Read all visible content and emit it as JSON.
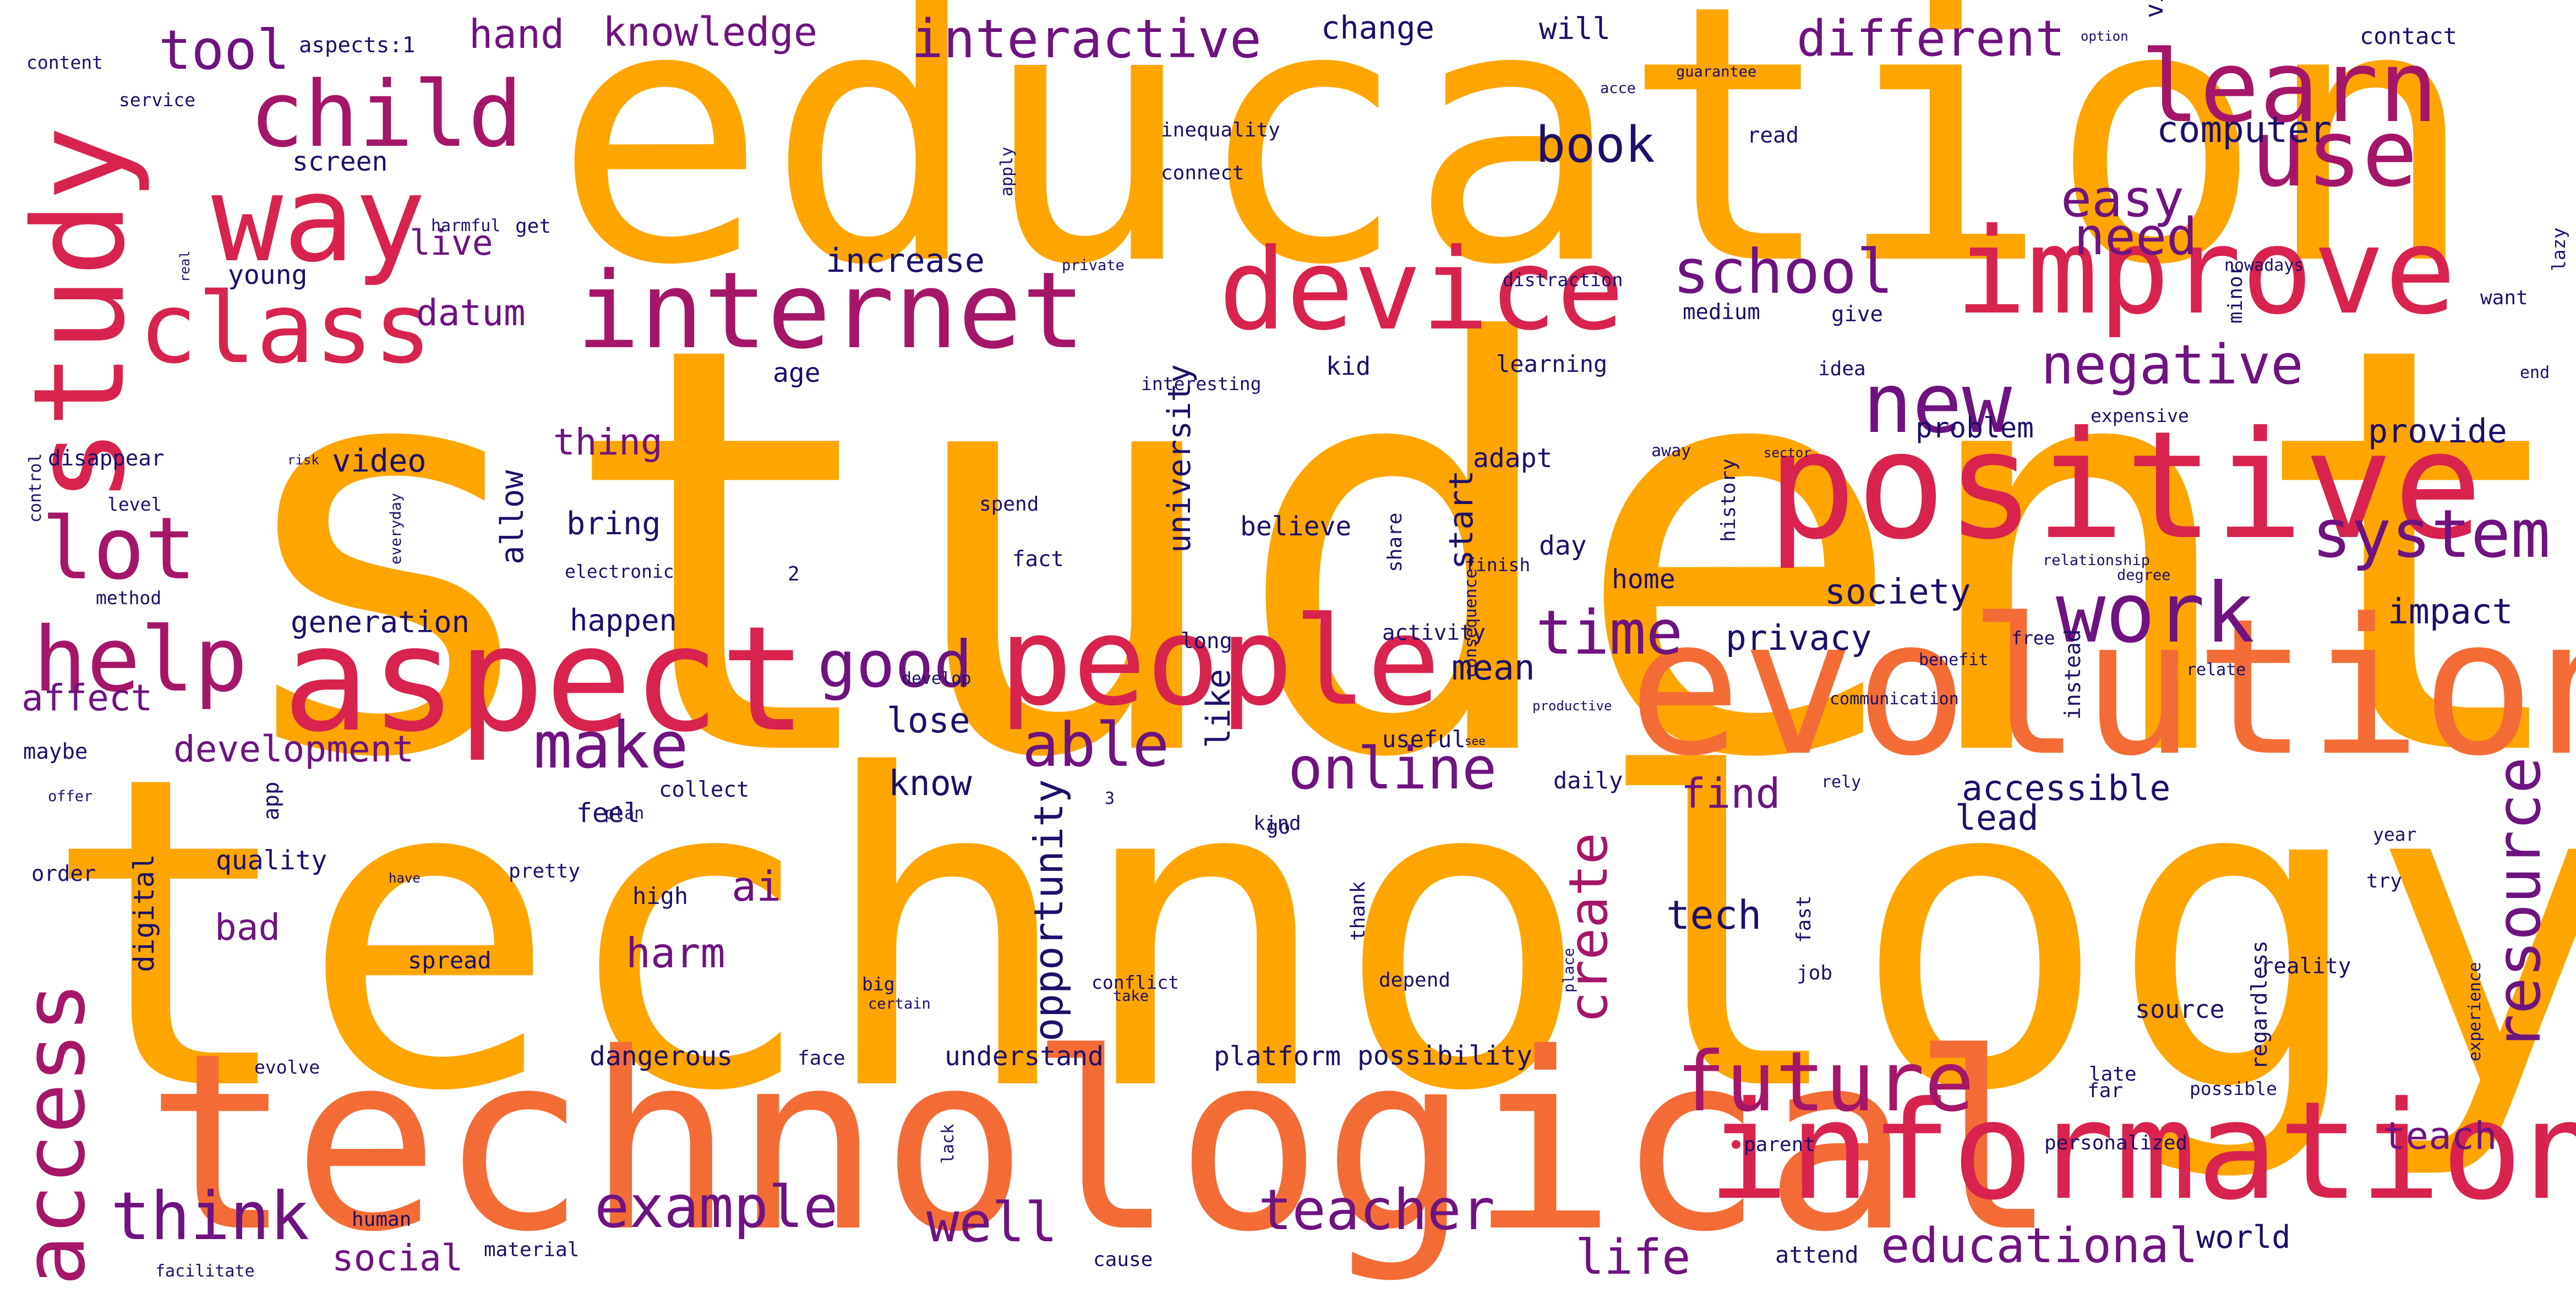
{
  "palette": {
    "orange": "#ffa500",
    "coral": "#f46c35",
    "crimson": "#d8234e",
    "magenta": "#a51669",
    "purple": "#6e1380",
    "navy": "#1d0f6a",
    "background": "#ffffff"
  },
  "words": [
    "student",
    "technology",
    "education",
    "technological",
    "evolution",
    "positive",
    "information",
    "aspect",
    "study",
    "people",
    "improve",
    "device",
    "internet",
    "way",
    "class",
    "child",
    "learn",
    "use",
    "access",
    "help",
    "lot",
    "future",
    "work",
    "new",
    "system",
    "school",
    "resource",
    "time",
    "good",
    "able",
    "online",
    "create",
    "make",
    "tool",
    "think",
    "example",
    "teacher",
    "well",
    "educational",
    "life",
    "different",
    "interactive",
    "negative",
    "need",
    "easy",
    "knowledge",
    "hand",
    "book",
    "find",
    "ai",
    "harm",
    "tech",
    "teach",
    "opportunity",
    "bad",
    "social",
    "development",
    "affect",
    "datum",
    "live",
    "thing",
    "computer",
    "society",
    "privacy",
    "impact",
    "mean",
    "lose",
    "know",
    "accessible",
    "lead",
    "university",
    "start",
    "like",
    "bring",
    "allow",
    "video",
    "provide",
    "problem",
    "increase",
    "change",
    "will",
    "generation",
    "happen",
    "digital",
    "world",
    "understand",
    "home",
    "believe",
    "day",
    "adapt",
    "feel",
    "quality",
    "possibility",
    "dangerous",
    "platform",
    "screen",
    "young",
    "age",
    "kid",
    "learning",
    "idea",
    "give",
    "medium",
    "want",
    "end",
    "contact",
    "read",
    "connect",
    "inequality",
    "aspects:1",
    "content",
    "service",
    "get",
    "harmful",
    "apply",
    "guarantee",
    "option",
    "virtual",
    "acce",
    "nowadays",
    "distraction",
    "private",
    "lazy",
    "minor",
    "expensive",
    "sector",
    "away",
    "history",
    "relationship",
    "degree",
    "interesting",
    "disappear",
    "level",
    "control",
    "risk",
    "real",
    "everyday",
    "spend",
    "fact",
    "electronic",
    "2",
    "method",
    "share",
    "finish",
    "long",
    "activity",
    "free",
    "relate",
    "communication",
    "benefit",
    "consequence",
    "develop",
    "productive",
    "useful",
    "instead",
    "maybe",
    "collect",
    "plan",
    "see",
    "daily",
    "rely",
    "year",
    "offer",
    "3",
    "kind",
    "go",
    "app",
    "order",
    "pretty",
    "have",
    "high",
    "try",
    "reality",
    "place",
    "fast",
    "thank",
    "spread",
    "big",
    "certain",
    "conflict",
    "take",
    "depend",
    "job",
    "source",
    "regardless",
    "experience",
    "evolve",
    "face",
    "lack",
    "late",
    "far",
    "possible",
    "parent",
    "personalized",
    "human",
    "material",
    "facilitate",
    "cause",
    "attend"
  ]
}
